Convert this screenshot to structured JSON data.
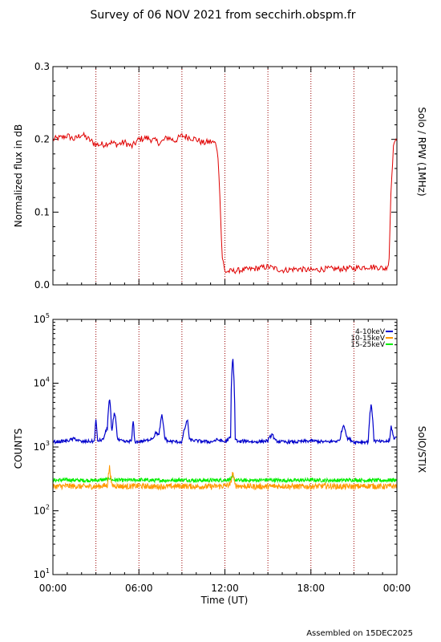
{
  "title": "Survey of 06 NOV 2021 from secchirh.obspm.fr",
  "footer": "Assembled on 15DEC2025",
  "colors": {
    "rpw": "#e00000",
    "lo": "#0000cc",
    "mid": "#ff9900",
    "hi": "#00ee00",
    "grid": "#990000"
  },
  "chart_data": [
    {
      "type": "line",
      "instrument": "Solo / RPW (1MHz)",
      "ylabel": "Normalized flux in dB",
      "xlim": [
        "00:00",
        "24:00"
      ],
      "ylim": [
        0.0,
        0.3
      ],
      "yticks": [
        "0.0",
        "0.1",
        "0.2",
        "0.3"
      ],
      "grid": "vertical dotted every 3 h",
      "series": [
        {
          "color": "red",
          "x_hours": [
            0.0,
            0.5,
            1.0,
            1.5,
            2.0,
            2.5,
            3.0,
            3.5,
            4.0,
            4.5,
            5.0,
            5.5,
            6.0,
            6.5,
            7.0,
            7.5,
            8.0,
            8.5,
            9.0,
            9.5,
            10.0,
            10.5,
            11.0,
            11.3,
            11.45,
            11.6,
            11.8,
            12.0,
            13.0,
            14.0,
            15.0,
            16.0,
            17.0,
            18.0,
            19.0,
            20.0,
            21.0,
            22.0,
            22.8,
            23.2,
            23.45,
            23.6,
            23.8,
            24.0
          ],
          "y": [
            0.2,
            0.202,
            0.205,
            0.2,
            0.207,
            0.2,
            0.193,
            0.193,
            0.196,
            0.193,
            0.196,
            0.19,
            0.2,
            0.202,
            0.199,
            0.195,
            0.203,
            0.198,
            0.205,
            0.203,
            0.2,
            0.195,
            0.197,
            0.195,
            0.19,
            0.15,
            0.04,
            0.018,
            0.02,
            0.022,
            0.025,
            0.02,
            0.022,
            0.02,
            0.022,
            0.022,
            0.023,
            0.025,
            0.024,
            0.022,
            0.03,
            0.14,
            0.2,
            0.195
          ]
        }
      ]
    },
    {
      "type": "line",
      "instrument": "SolO/STIX",
      "ylabel": "COUNTS",
      "xlabel": "Time (UT)",
      "xlim": [
        "00:00",
        "24:00"
      ],
      "xticks": [
        "00:00",
        "06:00",
        "12:00",
        "18:00",
        "00:00"
      ],
      "yscale": "log",
      "ylim": [
        10,
        100000
      ],
      "yticks": [
        "10^1",
        "10^2",
        "10^3",
        "10^4",
        "10^5"
      ],
      "grid": "vertical dotted every 3 h",
      "legend": "top-right",
      "series": [
        {
          "name": "4-10keV",
          "color": "blue",
          "x_hours": [
            0.0,
            0.5,
            1.0,
            1.5,
            2.0,
            2.5,
            2.9,
            3.0,
            3.1,
            3.5,
            3.8,
            3.95,
            4.1,
            4.3,
            4.5,
            5.0,
            5.5,
            5.6,
            5.7,
            6.5,
            7.0,
            7.2,
            7.4,
            7.6,
            7.8,
            8.0,
            9.0,
            9.4,
            9.5,
            10.0,
            11.0,
            11.5,
            12.0,
            12.4,
            12.55,
            12.7,
            12.9,
            13.5,
            14.0,
            15.0,
            15.3,
            15.5,
            16.0,
            17.0,
            18.0,
            19.0,
            20.0,
            20.3,
            20.5,
            21.0,
            22.0,
            22.2,
            22.4,
            23.0,
            23.5,
            23.6,
            23.8,
            24.0
          ],
          "y": [
            1200,
            1220,
            1250,
            1350,
            1200,
            1230,
            1220,
            2700,
            1250,
            1300,
            2000,
            5800,
            1500,
            3600,
            1300,
            1200,
            1250,
            2600,
            1200,
            1250,
            1400,
            1700,
            1500,
            3100,
            1400,
            1230,
            1200,
            2700,
            1300,
            1250,
            1200,
            1300,
            1200,
            1400,
            25000,
            1400,
            1200,
            1250,
            1200,
            1250,
            1600,
            1250,
            1200,
            1200,
            1250,
            1200,
            1250,
            2300,
            1400,
            1200,
            1200,
            4600,
            1250,
            1200,
            1250,
            2100,
            1300,
            1500
          ]
        },
        {
          "name": "10-15keV",
          "color": "orange",
          "x_hours": [
            0.0,
            1.0,
            2.0,
            3.0,
            3.8,
            3.95,
            4.1,
            5.0,
            6.0,
            7.0,
            8.0,
            9.0,
            10.0,
            11.0,
            12.0,
            12.4,
            12.55,
            12.7,
            13.0,
            14.0,
            15.0,
            16.0,
            17.0,
            18.0,
            19.0,
            20.0,
            21.0,
            22.0,
            23.0,
            24.0
          ],
          "y": [
            240,
            245,
            240,
            240,
            250,
            480,
            250,
            240,
            245,
            240,
            240,
            245,
            240,
            240,
            245,
            260,
            400,
            250,
            245,
            240,
            240,
            245,
            240,
            240,
            245,
            240,
            240,
            245,
            240,
            245
          ]
        },
        {
          "name": "15-25keV",
          "color": "green",
          "x_hours": [
            0.0,
            1.0,
            2.0,
            3.0,
            3.8,
            3.95,
            4.1,
            5.0,
            6.0,
            7.0,
            8.0,
            9.0,
            10.0,
            11.0,
            12.0,
            12.4,
            12.55,
            12.7,
            13.0,
            14.0,
            15.0,
            16.0,
            17.0,
            18.0,
            19.0,
            20.0,
            21.0,
            22.0,
            23.0,
            24.0
          ],
          "y": [
            300,
            305,
            300,
            300,
            310,
            330,
            305,
            300,
            305,
            300,
            300,
            305,
            300,
            300,
            305,
            310,
            340,
            305,
            300,
            300,
            305,
            300,
            300,
            305,
            300,
            300,
            305,
            300,
            300,
            305
          ]
        }
      ]
    }
  ]
}
